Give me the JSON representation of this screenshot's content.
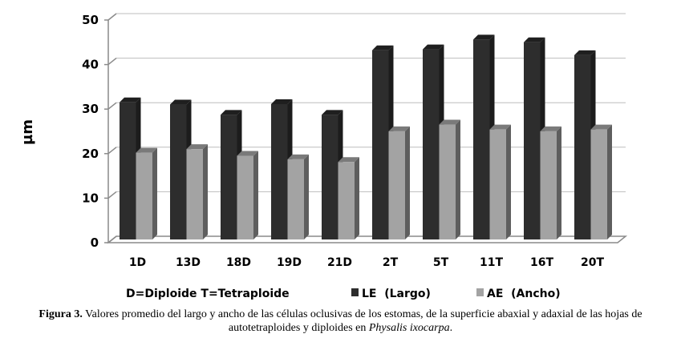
{
  "chart_data": {
    "type": "bar",
    "style": "3d-clustered-column",
    "title": "",
    "xlabel": "",
    "ylabel": "µm",
    "ylim": [
      0,
      50
    ],
    "yticks": [
      0,
      10,
      20,
      30,
      40,
      50
    ],
    "grid": true,
    "legend_position": "bottom",
    "legend_note": "D=Diploide  T=Tetraploide",
    "categories": [
      "1D",
      "13D",
      "18D",
      "19D",
      "21D",
      "2T",
      "5T",
      "11T",
      "16T",
      "20T"
    ],
    "series": [
      {
        "name": "LE  (Largo)",
        "color": "#2d2d2d",
        "values": [
          30.8,
          30.3,
          28.0,
          30.4,
          28.0,
          42.5,
          42.7,
          44.9,
          44.3,
          41.4
        ]
      },
      {
        "name": "AE  (Ancho)",
        "color": "#a3a3a3",
        "values": [
          19.5,
          20.3,
          18.8,
          18.0,
          17.4,
          24.3,
          25.8,
          24.7,
          24.3,
          24.7
        ]
      }
    ]
  },
  "caption": {
    "label": "Figura 3.",
    "text": " Valores promedio del largo y ancho de las células oclusivas de los estomas, de la superficie abaxial y adaxial de las hojas de autotetraploides y diploides en ",
    "species": "Physalis ixocarpa",
    "end": "."
  }
}
